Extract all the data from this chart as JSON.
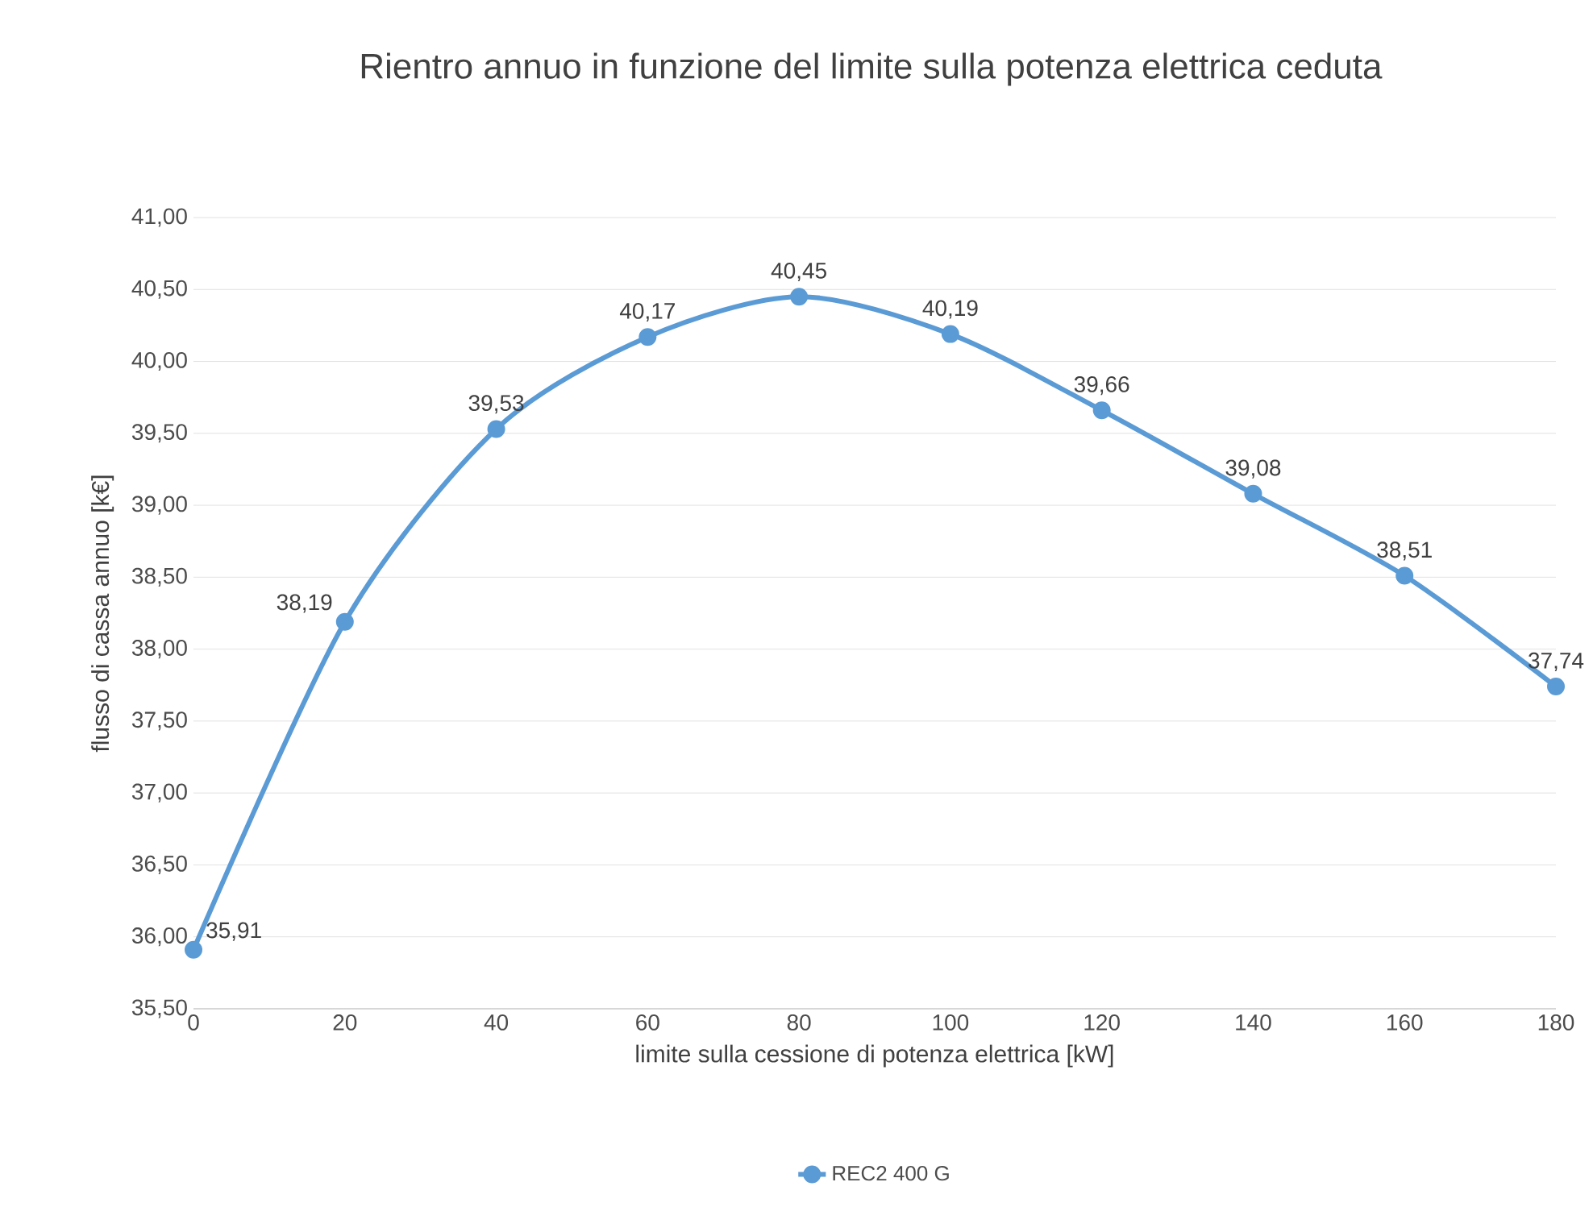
{
  "chart_data": {
    "type": "line",
    "title": "Rientro annuo in funzione del limite sulla potenza elettrica ceduta",
    "xlabel": "limite sulla cessione di potenza elettrica [kW]",
    "ylabel": "flusso di cassa annuo [k€]",
    "x": [
      0,
      20,
      40,
      60,
      80,
      100,
      120,
      140,
      160,
      180
    ],
    "series": [
      {
        "name": "REC2 400 G",
        "color": "#5b9bd5",
        "values": [
          35.91,
          38.19,
          39.53,
          40.17,
          40.45,
          40.19,
          39.66,
          39.08,
          38.51,
          37.74
        ],
        "value_labels": [
          "35,91",
          "38,19",
          "39,53",
          "40,17",
          "40,45",
          "40,19",
          "39,66",
          "39,08",
          "38,51",
          "37,74"
        ]
      }
    ],
    "xlim": [
      0,
      180
    ],
    "xticks": [
      0,
      20,
      40,
      60,
      80,
      100,
      120,
      140,
      160,
      180
    ],
    "ylim": [
      35.5,
      41
    ],
    "yticks": [
      {
        "value": 35.5,
        "label": "35,50"
      },
      {
        "value": 36,
        "label": "36,00"
      },
      {
        "value": 36.5,
        "label": "36,50"
      },
      {
        "value": 37,
        "label": "37,00"
      },
      {
        "value": 37.5,
        "label": "37,50"
      },
      {
        "value": 38,
        "label": "38,00"
      },
      {
        "value": 38.5,
        "label": "38,50"
      },
      {
        "value": 39,
        "label": "39,00"
      },
      {
        "value": 39.5,
        "label": "39,50"
      },
      {
        "value": 40,
        "label": "40,00"
      },
      {
        "value": 40.5,
        "label": "40,50"
      },
      {
        "value": 41,
        "label": "41,00"
      }
    ],
    "grid": "y",
    "legend": "bottom",
    "marker": "circle",
    "line_style": "solid"
  }
}
